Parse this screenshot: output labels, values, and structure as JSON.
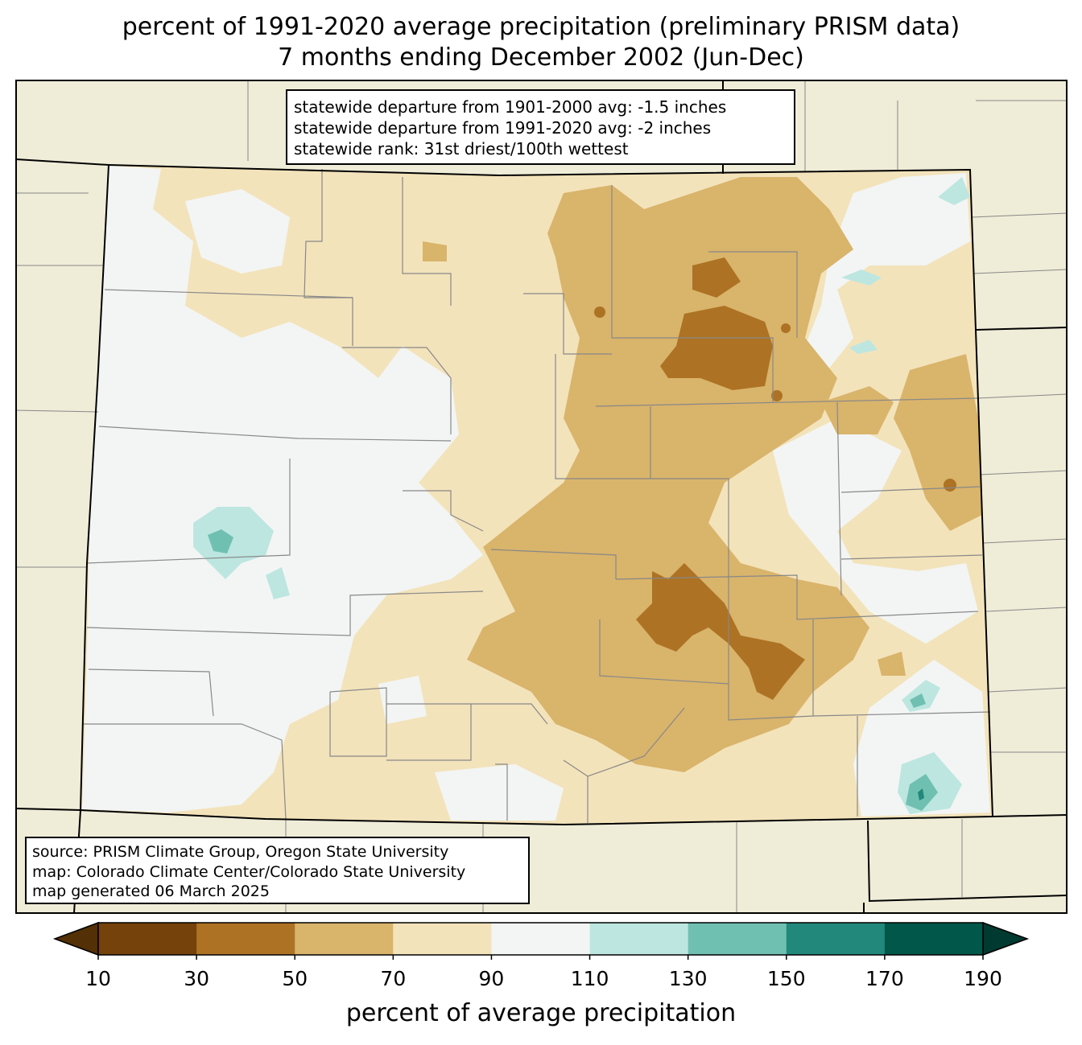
{
  "title": {
    "line1": "percent of 1991-2020 average precipitation (preliminary PRISM data)",
    "line2": "7 months ending December 2002 (Jun-Dec)"
  },
  "stats": {
    "departure_1901_2000": "statewide departure from 1901-2000 avg: -1.5 inches",
    "departure_1991_2020": "statewide departure from 1991-2020 avg: -2 inches",
    "rank": "statewide rank: 31st driest/100th wettest"
  },
  "credits": {
    "source": "source: PRISM Climate Group, Oregon State University",
    "map": "map: Colorado Climate Center/Colorado State University",
    "generated": "map generated 06 March 2025"
  },
  "colorbar": {
    "label": "percent of average precipitation",
    "ticks": [
      "10",
      "30",
      "50",
      "70",
      "90",
      "110",
      "130",
      "150",
      "170",
      "190"
    ],
    "bins": [
      {
        "range": "10-30",
        "color": "#74420a"
      },
      {
        "range": "30-50",
        "color": "#ad7224"
      },
      {
        "range": "50-70",
        "color": "#d9b46b"
      },
      {
        "range": "70-90",
        "color": "#f3e3bb"
      },
      {
        "range": "90-110",
        "color": "#f3f5f4"
      },
      {
        "range": "110-130",
        "color": "#bde6e0"
      },
      {
        "range": "130-150",
        "color": "#70c0b2"
      },
      {
        "range": "150-170",
        "color": "#22887c"
      },
      {
        "range": "170-190",
        "color": "#00574a"
      }
    ],
    "under_color": "#533006",
    "over_color": "#003a30"
  },
  "colors": {
    "surrounding_states": "#efecd8",
    "county_lines": "#888888",
    "state_lines": "#000000"
  }
}
